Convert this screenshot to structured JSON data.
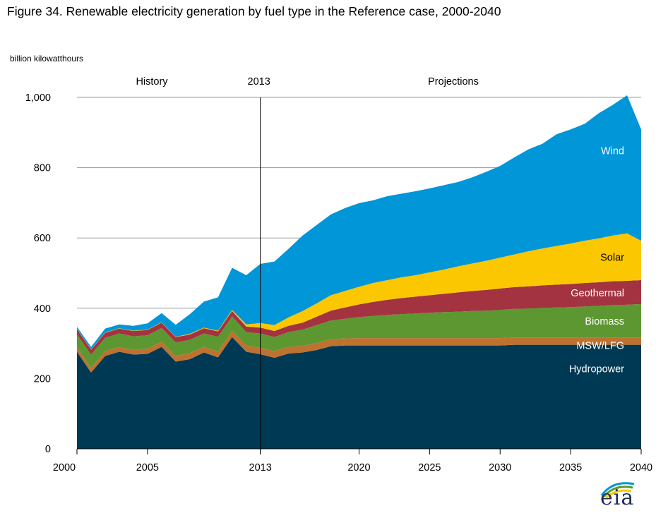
{
  "title": "Figure 34. Renewable electricity generation by fuel type in the Reference case, 2000-2040",
  "chart_data": {
    "type": "area",
    "stacked": true,
    "ylabel": "billion kilowatthours",
    "xlabel": "",
    "ylim": [
      0,
      1000
    ],
    "xlim": [
      2000,
      2040
    ],
    "yticks": [
      0,
      200,
      400,
      600,
      800,
      1000
    ],
    "ytick_labels": [
      "0",
      "200",
      "400",
      "600",
      "800",
      "1,000"
    ],
    "xticks": [
      2000,
      2005,
      2013,
      2020,
      2025,
      2030,
      2035,
      2040
    ],
    "xtick_labels": [
      "2000",
      "2005",
      "2013",
      "2020",
      "2025",
      "2030",
      "2035",
      "2040"
    ],
    "grid": "horizontal",
    "divider": {
      "x": 2013,
      "label": "2013"
    },
    "region_labels": {
      "history": "History",
      "projections": "Projections"
    },
    "x": [
      2000,
      2001,
      2002,
      2003,
      2004,
      2005,
      2006,
      2007,
      2008,
      2009,
      2010,
      2011,
      2012,
      2013,
      2014,
      2015,
      2016,
      2017,
      2018,
      2019,
      2020,
      2021,
      2022,
      2023,
      2024,
      2025,
      2026,
      2027,
      2028,
      2029,
      2030,
      2031,
      2032,
      2033,
      2034,
      2035,
      2036,
      2037,
      2038,
      2039,
      2040
    ],
    "series": [
      {
        "name": "Hydropower",
        "color": "#003953",
        "label_color": "#ffffff",
        "values": [
          276,
          217,
          264,
          276,
          268,
          270,
          290,
          248,
          255,
          274,
          260,
          318,
          276,
          269,
          259,
          271,
          274,
          281,
          292,
          294,
          294,
          294,
          294,
          294,
          294,
          294,
          294,
          294,
          294,
          294,
          294,
          296,
          296,
          296,
          296,
          296,
          296,
          296,
          296,
          296,
          296
        ]
      },
      {
        "name": "MSW/LFG",
        "color": "#bf7130",
        "label_color": "#ffffff",
        "values": [
          13,
          13,
          14,
          13,
          14,
          15,
          15,
          16,
          17,
          16,
          17,
          17,
          18,
          19,
          19,
          19,
          19,
          20,
          20,
          20,
          21,
          21,
          21,
          21,
          21,
          21,
          21,
          21,
          21,
          21,
          21,
          21,
          21,
          21,
          21,
          21,
          21,
          21,
          21,
          21,
          21
        ]
      },
      {
        "name": "Biomass",
        "color": "#5d9732",
        "label_color": "#ffffff",
        "values": [
          37,
          38,
          38,
          39,
          38,
          38,
          39,
          39,
          38,
          38,
          42,
          42,
          38,
          40,
          40,
          42,
          46,
          51,
          53,
          56,
          60,
          63,
          66,
          68,
          70,
          72,
          74,
          75,
          77,
          78,
          80,
          81,
          82,
          84,
          85,
          86,
          88,
          90,
          92,
          93,
          95
        ]
      },
      {
        "name": "Geothermal",
        "color": "#a33340",
        "label_color": "#ffffff",
        "values": [
          14,
          14,
          14,
          14,
          15,
          15,
          15,
          15,
          15,
          15,
          15,
          15,
          16,
          17,
          17,
          18,
          20,
          24,
          28,
          32,
          36,
          40,
          43,
          46,
          48,
          50,
          52,
          55,
          57,
          59,
          61,
          62,
          63,
          64,
          65,
          66,
          67,
          67,
          68,
          68,
          68
        ]
      },
      {
        "name": "Solar",
        "color": "#fbc700",
        "label_color": "#000000",
        "values": [
          1,
          1,
          1,
          1,
          1,
          1,
          1,
          1,
          2,
          2,
          2,
          3,
          6,
          13,
          17,
          24,
          33,
          38,
          44,
          47,
          50,
          54,
          56,
          59,
          61,
          65,
          69,
          74,
          78,
          83,
          88,
          93,
          100,
          105,
          110,
          115,
          120,
          125,
          130,
          135,
          112
        ]
      },
      {
        "name": "Wind",
        "color": "#0096d7",
        "label_color": "#ffffff",
        "values": [
          6,
          7,
          11,
          11,
          14,
          18,
          26,
          34,
          56,
          74,
          95,
          120,
          140,
          168,
          181,
          195,
          215,
          223,
          230,
          236,
          238,
          235,
          239,
          238,
          239,
          239,
          240,
          240,
          245,
          253,
          261,
          276,
          290,
          298,
          318,
          325,
          333,
          356,
          372,
          393,
          317
        ]
      }
    ],
    "series_label_order": [
      "Wind",
      "Solar",
      "Geothermal",
      "Biomass",
      "MSW/LFG",
      "Hydropower"
    ]
  },
  "logo": {
    "text": "eia",
    "arc_colors": [
      "#0096d7",
      "#5d9732",
      "#fbc700"
    ]
  }
}
